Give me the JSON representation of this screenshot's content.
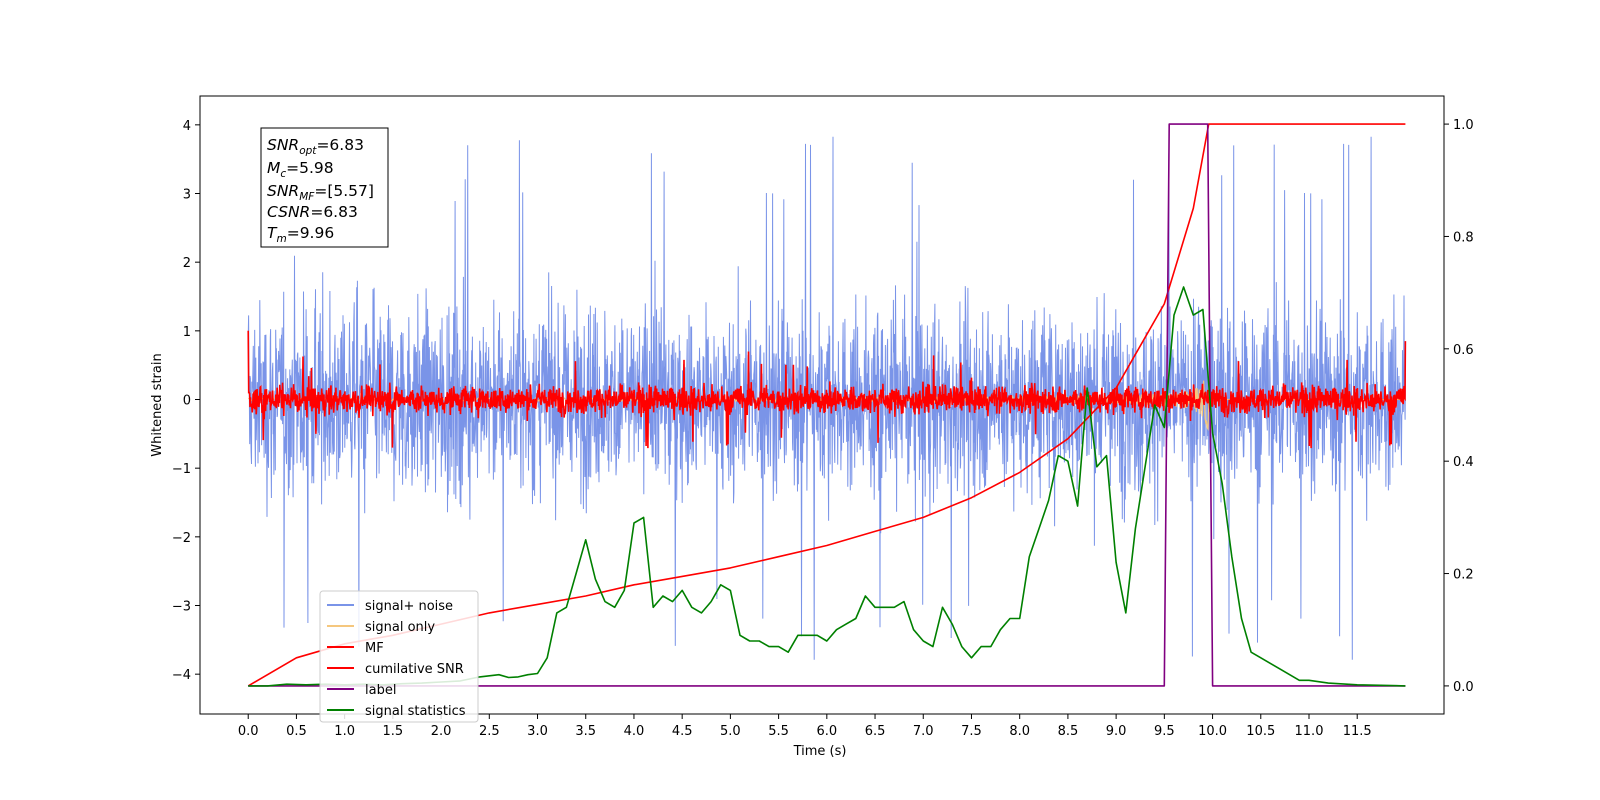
{
  "chart_data": {
    "type": "line",
    "xlabel": "Time (s)",
    "ylabel": "Whitened strain",
    "xlim": [
      -0.5,
      12.4
    ],
    "ylim": [
      -4.58,
      4.42
    ],
    "y2lim": [
      -0.05,
      1.05
    ],
    "x_ticks": [
      "0.0",
      "0.5",
      "1.0",
      "1.5",
      "2.0",
      "2.5",
      "3.0",
      "3.5",
      "4.0",
      "4.5",
      "5.0",
      "5.5",
      "6.0",
      "6.5",
      "7.0",
      "7.5",
      "8.0",
      "8.5",
      "9.0",
      "9.5",
      "10.0",
      "10.5",
      "11.0",
      "11.5"
    ],
    "y_ticks": [
      "4",
      "3",
      "2",
      "1",
      "0",
      "−1",
      "−2",
      "−3",
      "−4"
    ],
    "y2_ticks": [
      "1.0",
      "0.8",
      "0.6",
      "0.4",
      "0.2",
      "0.0"
    ],
    "annotation": [
      {
        "base": "SNR",
        "sub": "opt",
        "value": "=6.83"
      },
      {
        "base": "M",
        "sub": "c",
        "value": "=5.98"
      },
      {
        "base": "SNR",
        "sub": "MF",
        "value": "=[5.57]"
      },
      {
        "base": "CSNR",
        "sub": "",
        "value": "=6.83"
      },
      {
        "base": "T",
        "sub": "m",
        "value": "=9.96"
      }
    ],
    "series": [
      {
        "name": "signal+ noise",
        "color": "#7a94e8",
        "axis": "left",
        "x_range": [
          0.0,
          12.0
        ],
        "envelope": "approx. ±2.3 typical, spikes to ±3.9"
      },
      {
        "name": "signal only",
        "color": "#f5c77e",
        "axis": "left",
        "x_range": [
          0.0,
          12.0
        ],
        "envelope": "chirp, amplitude up to ~0.5 near 9.5–10.0"
      },
      {
        "name": "MF",
        "color": "#ff0000",
        "axis": "left",
        "x_range": [
          0.0,
          12.0
        ],
        "envelope": "approx. ±0.3, spikes to ±0.8"
      },
      {
        "name": "cumilative SNR",
        "color": "#ff0000",
        "axis": "right",
        "x": [
          0.0,
          0.5,
          1.0,
          1.5,
          2.0,
          2.5,
          3.0,
          3.5,
          4.0,
          4.5,
          5.0,
          5.5,
          6.0,
          6.5,
          7.0,
          7.5,
          8.0,
          8.5,
          9.0,
          9.5,
          9.8,
          9.96,
          9.97,
          12.0
        ],
        "y": [
          0.0,
          0.05,
          0.075,
          0.09,
          0.11,
          0.13,
          0.145,
          0.16,
          0.18,
          0.195,
          0.21,
          0.23,
          0.25,
          0.275,
          0.3,
          0.335,
          0.38,
          0.44,
          0.53,
          0.68,
          0.85,
          1.0,
          1.0,
          1.0
        ]
      },
      {
        "name": "label",
        "color": "#800080",
        "axis": "right",
        "x": [
          0.0,
          9.5,
          9.55,
          9.95,
          10.0,
          12.0
        ],
        "y": [
          0.0,
          0.0,
          1.0,
          1.0,
          0.0,
          0.0
        ]
      },
      {
        "name": "signal statistics",
        "color": "#008000",
        "axis": "right",
        "x": [
          0.0,
          0.2,
          0.4,
          0.6,
          0.8,
          1.0,
          1.2,
          1.4,
          1.6,
          1.8,
          2.0,
          2.2,
          2.4,
          2.5,
          2.6,
          2.7,
          2.8,
          2.9,
          3.0,
          3.1,
          3.2,
          3.3,
          3.4,
          3.5,
          3.6,
          3.7,
          3.8,
          3.9,
          4.0,
          4.1,
          4.2,
          4.3,
          4.4,
          4.5,
          4.6,
          4.7,
          4.8,
          4.9,
          5.0,
          5.1,
          5.2,
          5.3,
          5.4,
          5.5,
          5.6,
          5.7,
          5.8,
          5.9,
          6.0,
          6.1,
          6.2,
          6.3,
          6.4,
          6.5,
          6.6,
          6.7,
          6.8,
          6.9,
          7.0,
          7.1,
          7.2,
          7.3,
          7.4,
          7.5,
          7.6,
          7.7,
          7.8,
          7.9,
          8.0,
          8.1,
          8.2,
          8.3,
          8.4,
          8.5,
          8.6,
          8.7,
          8.8,
          8.9,
          9.0,
          9.1,
          9.2,
          9.3,
          9.4,
          9.5,
          9.6,
          9.7,
          9.8,
          9.9,
          10.0,
          10.1,
          10.2,
          10.3,
          10.4,
          10.5,
          10.6,
          10.7,
          10.8,
          10.9,
          11.0,
          11.2,
          11.5,
          12.0
        ],
        "y": [
          0.0,
          0.0,
          0.003,
          0.002,
          0.003,
          0.002,
          0.003,
          0.002,
          0.004,
          0.005,
          0.007,
          0.009,
          0.016,
          0.018,
          0.02,
          0.015,
          0.016,
          0.02,
          0.022,
          0.05,
          0.13,
          0.14,
          0.2,
          0.26,
          0.19,
          0.15,
          0.14,
          0.17,
          0.29,
          0.3,
          0.14,
          0.16,
          0.15,
          0.17,
          0.14,
          0.13,
          0.15,
          0.18,
          0.17,
          0.09,
          0.08,
          0.08,
          0.07,
          0.07,
          0.06,
          0.09,
          0.09,
          0.09,
          0.08,
          0.1,
          0.11,
          0.12,
          0.16,
          0.14,
          0.14,
          0.14,
          0.15,
          0.1,
          0.08,
          0.07,
          0.14,
          0.11,
          0.07,
          0.05,
          0.07,
          0.07,
          0.1,
          0.12,
          0.12,
          0.23,
          0.28,
          0.33,
          0.41,
          0.4,
          0.32,
          0.53,
          0.39,
          0.41,
          0.22,
          0.13,
          0.28,
          0.39,
          0.5,
          0.46,
          0.66,
          0.71,
          0.66,
          0.67,
          0.45,
          0.36,
          0.23,
          0.12,
          0.06,
          0.05,
          0.04,
          0.03,
          0.02,
          0.01,
          0.01,
          0.005,
          0.002,
          0.0
        ]
      }
    ],
    "legend": {
      "position": "lower-left",
      "entries": [
        "signal+ noise",
        "signal only",
        "MF",
        "cumilative SNR",
        "label",
        "signal statistics"
      ]
    },
    "grid": false
  }
}
